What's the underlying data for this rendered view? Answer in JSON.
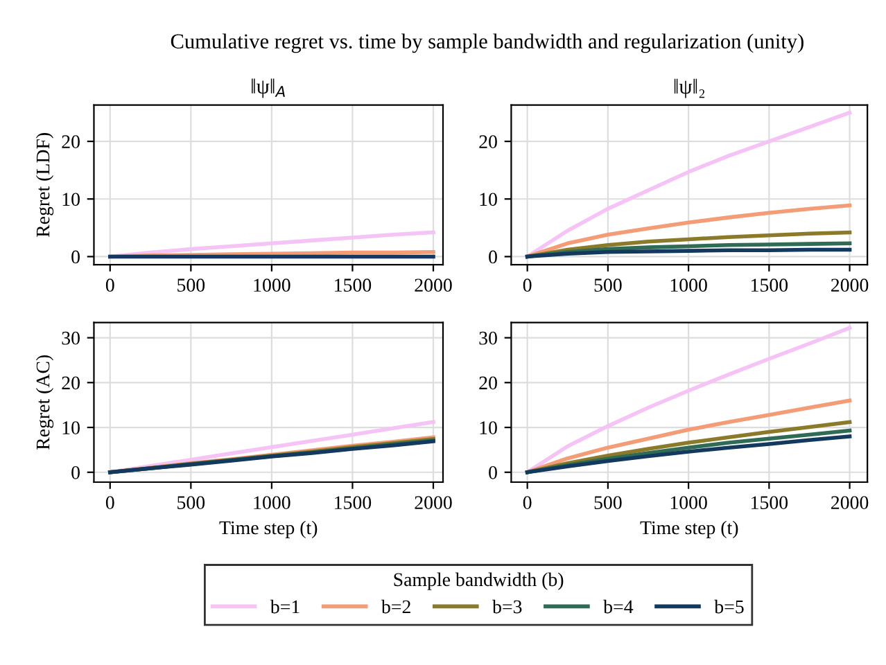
{
  "chart_data": [
    {
      "type": "line",
      "title": "‖ψ‖$_{A}$",
      "ylabel": "Regret (LDF)",
      "annotations": [
        "Cumulative regret vs. time by sample bandwidth and regularization (unity)"
      ],
      "x": [
        0,
        250,
        500,
        750,
        1000,
        1250,
        1500,
        1750,
        2000
      ],
      "xlim": [
        -100,
        2060
      ],
      "xticks": [
        0,
        500,
        1000,
        1500,
        2000
      ],
      "ylim": [
        -1.4,
        26.3
      ],
      "yticks": [
        0,
        10,
        20
      ],
      "grid": true,
      "line_style": "solid",
      "legend": "bottom",
      "legend_title": "Sample bandwidth (b)",
      "series": [
        {
          "name": "b=1",
          "color": "#f5c3f5",
          "values": [
            0,
            0.7,
            1.3,
            1.8,
            2.3,
            2.8,
            3.3,
            3.8,
            4.2
          ]
        },
        {
          "name": "b=2",
          "color": "#f39c76",
          "values": [
            0,
            0.2,
            0.3,
            0.4,
            0.5,
            0.6,
            0.7,
            0.7,
            0.8
          ]
        },
        {
          "name": "b=3",
          "color": "#8b7a2a",
          "values": [
            null,
            null,
            null,
            null,
            null,
            null,
            null,
            null,
            null
          ]
        },
        {
          "name": "b=4",
          "color": "#2f6b55",
          "values": [
            null,
            null,
            null,
            null,
            null,
            null,
            null,
            null,
            null
          ]
        },
        {
          "name": "b=5",
          "color": "#133a5e",
          "values": [
            0,
            0,
            0,
            0,
            0,
            0,
            0,
            0,
            0
          ]
        }
      ]
    },
    {
      "type": "line",
      "title": "‖ψ‖₂",
      "x": [
        0,
        250,
        500,
        750,
        1000,
        1250,
        1500,
        1750,
        2000
      ],
      "xlim": [
        -100,
        2110
      ],
      "xticks": [
        0,
        500,
        1000,
        1500,
        2000
      ],
      "ylim": [
        -1.4,
        26.3
      ],
      "yticks": [
        0,
        10,
        20
      ],
      "grid": true,
      "line_style": "solid",
      "series": [
        {
          "color": "#f5c3f5",
          "values": [
            0,
            4.5,
            8.3,
            11.5,
            14.7,
            17.5,
            20,
            22.5,
            25
          ]
        },
        {
          "color": "#f39c76",
          "values": [
            0,
            2.3,
            3.8,
            4.9,
            5.9,
            6.8,
            7.6,
            8.3,
            8.9
          ]
        },
        {
          "color": "#8b7a2a",
          "values": [
            0,
            1.2,
            2.0,
            2.6,
            3.0,
            3.4,
            3.7,
            4.0,
            4.2
          ]
        },
        {
          "color": "#2f6b55",
          "values": [
            0,
            0.8,
            1.3,
            1.6,
            1.8,
            2.0,
            2.1,
            2.2,
            2.3
          ]
        },
        {
          "color": "#133a5e",
          "values": [
            0,
            0.5,
            0.8,
            0.9,
            1.0,
            1.1,
            1.1,
            1.2,
            1.2
          ]
        }
      ]
    },
    {
      "type": "line",
      "ylabel": "Regret (AC)",
      "xlabel": "Time step (t)",
      "x": [
        0,
        250,
        500,
        750,
        1000,
        1250,
        1500,
        1750,
        2000
      ],
      "xlim": [
        -100,
        2060
      ],
      "xticks": [
        0,
        500,
        1000,
        1500,
        2000
      ],
      "ylim": [
        -2.2,
        33.4
      ],
      "yticks": [
        0,
        10,
        20,
        30
      ],
      "grid": true,
      "line_style": "solid",
      "series": [
        {
          "color": "#f5c3f5",
          "values": [
            0,
            1.4,
            2.8,
            4.2,
            5.6,
            7.0,
            8.4,
            9.8,
            11.2
          ]
        },
        {
          "color": "#f39c76",
          "values": [
            0,
            1.0,
            2.0,
            2.9,
            3.9,
            4.9,
            5.9,
            6.8,
            7.8
          ]
        },
        {
          "color": "#8b7a2a",
          "values": [
            0,
            0.9,
            1.9,
            2.8,
            3.7,
            4.6,
            5.6,
            6.5,
            7.4
          ]
        },
        {
          "color": "#2f6b55",
          "values": [
            0,
            0.9,
            1.8,
            2.7,
            3.6,
            4.4,
            5.3,
            6.2,
            7.1
          ]
        },
        {
          "color": "#133a5e",
          "values": [
            0,
            0.9,
            1.7,
            2.6,
            3.5,
            4.3,
            5.2,
            6.0,
            6.9
          ]
        }
      ]
    },
    {
      "type": "line",
      "xlabel": "Time step (t)",
      "x": [
        0,
        250,
        500,
        750,
        1000,
        1250,
        1500,
        1750,
        2000
      ],
      "xlim": [
        -100,
        2110
      ],
      "xticks": [
        0,
        500,
        1000,
        1500,
        2000
      ],
      "ylim": [
        -2.2,
        33.4
      ],
      "yticks": [
        0,
        10,
        20,
        30
      ],
      "grid": true,
      "line_style": "solid",
      "series": [
        {
          "color": "#f5c3f5",
          "values": [
            0,
            5.8,
            10.3,
            14.4,
            18.2,
            21.8,
            25.3,
            28.7,
            32.2
          ]
        },
        {
          "color": "#f39c76",
          "values": [
            0,
            3.1,
            5.5,
            7.5,
            9.5,
            11.2,
            12.8,
            14.4,
            16
          ]
        },
        {
          "color": "#8b7a2a",
          "values": [
            0,
            2.0,
            3.7,
            5.2,
            6.6,
            7.8,
            9.0,
            10.1,
            11.2
          ]
        },
        {
          "color": "#2f6b55",
          "values": [
            0,
            1.6,
            3.0,
            4.3,
            5.5,
            6.6,
            7.5,
            8.4,
            9.3
          ]
        },
        {
          "color": "#133a5e",
          "values": [
            0,
            1.3,
            2.5,
            3.6,
            4.6,
            5.5,
            6.3,
            7.2,
            8.0
          ]
        }
      ]
    }
  ]
}
